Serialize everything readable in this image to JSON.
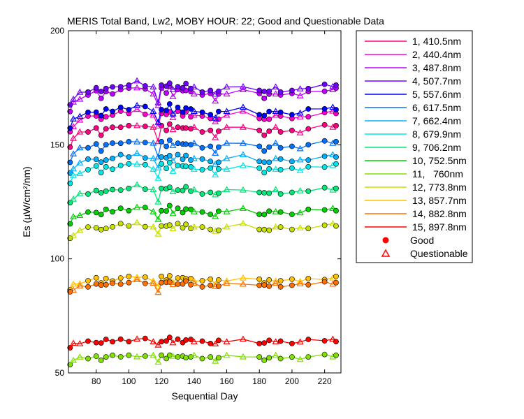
{
  "chart_data": {
    "type": "line",
    "title": "MERIS Total Band,  Lw2, MOBY HOUR: 22;  Good and Questionable Data",
    "xlabel": "Sequential Day",
    "ylabel": "Es (µW/cm²/nm)",
    "xlim": [
      63,
      230
    ],
    "ylim": [
      50,
      200
    ],
    "xticks": [
      80,
      100,
      120,
      140,
      160,
      180,
      200,
      220
    ],
    "yticks": [
      50,
      100,
      150,
      200
    ],
    "grid": false,
    "legend_position": "right, outside plot",
    "legend_markers": {
      "good_label": "Good",
      "questionable_label": "Questionable"
    },
    "x": [
      64,
      66,
      70,
      75,
      80,
      83,
      86,
      90,
      95,
      100,
      105,
      110,
      115,
      118,
      120,
      123,
      125,
      127,
      130,
      133,
      135,
      138,
      140,
      145,
      150,
      153,
      155,
      160,
      170,
      180,
      183,
      186,
      190,
      193,
      200,
      205,
      210,
      220,
      225,
      227
    ],
    "quest_x": [
      66,
      70,
      85,
      96,
      105,
      115,
      118,
      127,
      140,
      153,
      160,
      170,
      190,
      205,
      225
    ],
    "series": [
      {
        "name": "1, 410.5nm",
        "color": "#ff0080",
        "base": 157
      },
      {
        "name": "2, 440.4nm",
        "color": "#ff00cc",
        "base": 163
      },
      {
        "name": "3, 487.8nm",
        "color": "#c000ff",
        "base": 173
      },
      {
        "name": "4, 507.7nm",
        "color": "#7000ff",
        "base": 175
      },
      {
        "name": "5, 557.6nm",
        "color": "#0000ff",
        "base": 165
      },
      {
        "name": "6, 617.5nm",
        "color": "#0070ff",
        "base": 150
      },
      {
        "name": "7, 662.4nm",
        "color": "#00b0ff",
        "base": 144
      },
      {
        "name": "8, 679.9nm",
        "color": "#00e5e5",
        "base": 140
      },
      {
        "name": "9, 706.2nm",
        "color": "#00e878",
        "base": 130
      },
      {
        "name": "10, 752.5nm",
        "color": "#00d000",
        "base": 121
      },
      {
        "name": "11,   760nm",
        "color": "#80e000",
        "base": 57
      },
      {
        "name": "12, 773.8nm",
        "color": "#c8e000",
        "base": 114
      },
      {
        "name": "13, 857.7nm",
        "color": "#ffc000",
        "base": 91
      },
      {
        "name": "14, 882.8nm",
        "color": "#ff7000",
        "base": 89
      },
      {
        "name": "15, 897.8nm",
        "color": "#ff0000",
        "base": 64
      }
    ],
    "shape": [
      -7,
      -4,
      -2,
      -1,
      0,
      -2,
      0,
      0,
      1,
      1,
      2,
      1,
      0,
      -5,
      1,
      0,
      2,
      -1,
      1,
      0,
      1,
      0,
      0,
      -1,
      -1,
      -3,
      -1,
      0,
      1,
      -1,
      -2,
      -1,
      0,
      -1,
      -1,
      -1,
      0,
      1,
      1,
      1
    ]
  }
}
